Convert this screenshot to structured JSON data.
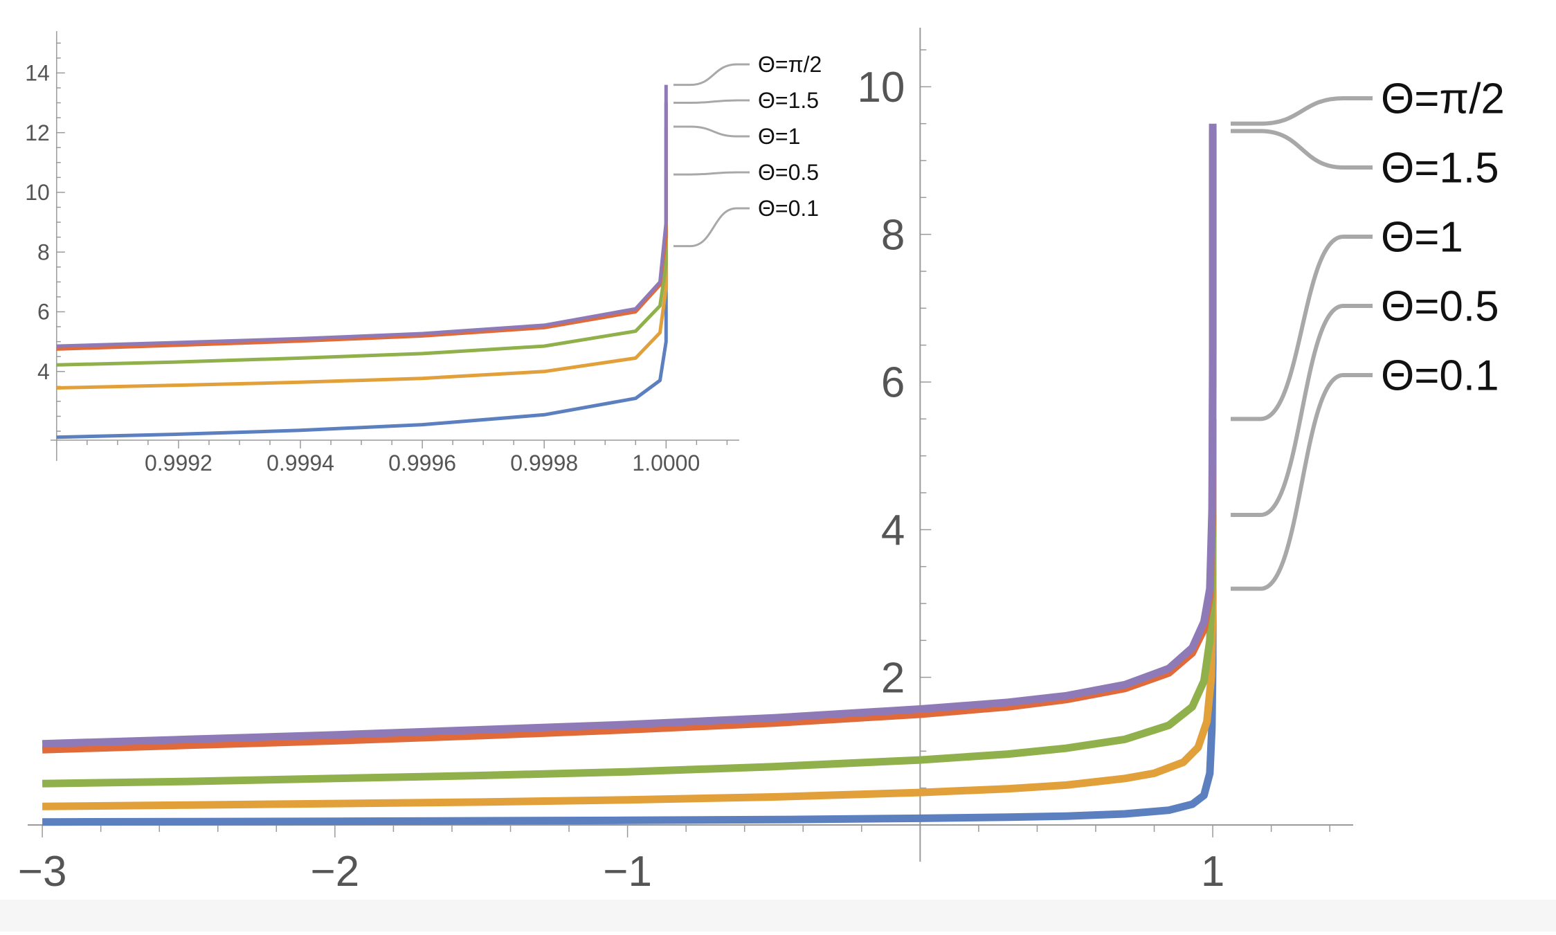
{
  "chart_data": [
    {
      "name": "main",
      "type": "line",
      "title": "",
      "xlabel": "",
      "ylabel": "",
      "xlim": [
        -3.05,
        1.48
      ],
      "ylim": [
        0,
        10.8
      ],
      "x_ticks": [
        -3,
        -2,
        -1,
        1
      ],
      "x_tick_labels": [
        "−3",
        "−2",
        "−1",
        "1"
      ],
      "y_ticks": [
        2,
        4,
        6,
        8,
        10
      ],
      "y_tick_labels": [
        "2",
        "4",
        "6",
        "8",
        "10"
      ],
      "grid": false,
      "legend_position": "right",
      "series": [
        {
          "name": "Θ=π/2",
          "color": "#8f7ab8",
          "x": [
            -3,
            -2.5,
            -2,
            -1.5,
            -1,
            -0.5,
            0,
            0.3,
            0.5,
            0.7,
            0.85,
            0.93,
            0.97,
            0.99,
            0.998,
            1,
            1
          ],
          "y": [
            1.1,
            1.16,
            1.22,
            1.29,
            1.36,
            1.45,
            1.57,
            1.66,
            1.75,
            1.9,
            2.12,
            2.4,
            2.75,
            3.2,
            4.3,
            6.5,
            9.5
          ]
        },
        {
          "name": "Θ=1.5",
          "color": "#e06a3a",
          "x": [
            -3,
            -2.5,
            -2,
            -1.5,
            -1,
            -0.5,
            0,
            0.3,
            0.5,
            0.7,
            0.85,
            0.93,
            0.97,
            0.99,
            0.998,
            1,
            1
          ],
          "y": [
            1.02,
            1.08,
            1.14,
            1.21,
            1.29,
            1.38,
            1.5,
            1.6,
            1.7,
            1.85,
            2.06,
            2.33,
            2.65,
            3.1,
            4.1,
            6.0,
            9.4
          ]
        },
        {
          "name": "Θ=1",
          "color": "#8fb04a",
          "x": [
            -3,
            -2.5,
            -2,
            -1.5,
            -1,
            -0.5,
            0,
            0.3,
            0.5,
            0.7,
            0.85,
            0.93,
            0.97,
            0.99,
            0.998,
            1,
            1
          ],
          "y": [
            0.56,
            0.59,
            0.63,
            0.67,
            0.72,
            0.79,
            0.88,
            0.96,
            1.04,
            1.16,
            1.35,
            1.6,
            1.95,
            2.5,
            3.3,
            4.2,
            5.5
          ]
        },
        {
          "name": "Θ=0.5",
          "color": "#e2a03a",
          "x": [
            -3,
            -2.5,
            -2,
            -1.5,
            -1,
            -0.5,
            0,
            0.3,
            0.5,
            0.7,
            0.8,
            0.9,
            0.95,
            0.98,
            0.995,
            1,
            1
          ],
          "y": [
            0.25,
            0.27,
            0.29,
            0.31,
            0.34,
            0.38,
            0.44,
            0.49,
            0.54,
            0.63,
            0.7,
            0.85,
            1.05,
            1.4,
            2.0,
            3.0,
            4.2
          ]
        },
        {
          "name": "Θ=0.1",
          "color": "#5b7fbf",
          "x": [
            -3,
            -2.5,
            -2,
            -1.5,
            -1,
            -0.5,
            0,
            0.3,
            0.5,
            0.7,
            0.85,
            0.93,
            0.97,
            0.99,
            0.997,
            1,
            1
          ],
          "y": [
            0.04,
            0.045,
            0.05,
            0.056,
            0.063,
            0.072,
            0.09,
            0.105,
            0.12,
            0.15,
            0.2,
            0.28,
            0.4,
            0.7,
            1.3,
            2.2,
            3.2
          ]
        }
      ]
    },
    {
      "name": "inset",
      "type": "line",
      "title": "",
      "xlabel": "",
      "ylabel": "",
      "xlim": [
        0.99899,
        1.00012
      ],
      "ylim": [
        1.7,
        15.4
      ],
      "x_ticks": [
        0.9992,
        0.9994,
        0.9996,
        0.9998,
        1.0
      ],
      "x_tick_labels": [
        "0.9992",
        "0.9994",
        "0.9996",
        "0.9998",
        "1.0000"
      ],
      "y_ticks": [
        4,
        6,
        8,
        10,
        12,
        14
      ],
      "y_tick_labels": [
        "4",
        "6",
        "8",
        "10",
        "12",
        "14"
      ],
      "grid": false,
      "legend_position": "right",
      "series": [
        {
          "name": "Θ=π/2",
          "color": "#8f7ab8",
          "x": [
            0.999,
            0.9992,
            0.9994,
            0.9996,
            0.9998,
            0.99995,
            0.99999,
            1.0,
            1.0
          ],
          "y": [
            4.85,
            4.97,
            5.1,
            5.27,
            5.55,
            6.1,
            7.0,
            9.0,
            13.6
          ]
        },
        {
          "name": "Θ=1.5",
          "color": "#e06a3a",
          "x": [
            0.999,
            0.9992,
            0.9994,
            0.9996,
            0.9998,
            0.99995,
            0.99999,
            1.0,
            1.0
          ],
          "y": [
            4.75,
            4.88,
            5.02,
            5.19,
            5.47,
            6.0,
            6.9,
            8.5,
            13.0
          ]
        },
        {
          "name": "Θ=1",
          "color": "#8fb04a",
          "x": [
            0.999,
            0.9992,
            0.9994,
            0.9996,
            0.9998,
            0.99995,
            0.99999,
            1.0,
            1.0
          ],
          "y": [
            4.22,
            4.32,
            4.45,
            4.6,
            4.85,
            5.35,
            6.2,
            7.6,
            12.2
          ]
        },
        {
          "name": "Θ=0.5",
          "color": "#e2a03a",
          "x": [
            0.999,
            0.9992,
            0.9994,
            0.9996,
            0.9998,
            0.99995,
            0.99999,
            1.0,
            1.0
          ],
          "y": [
            3.45,
            3.54,
            3.64,
            3.77,
            4.0,
            4.45,
            5.3,
            6.8,
            10.6
          ]
        },
        {
          "name": "Θ=0.1",
          "color": "#5b7fbf",
          "x": [
            0.999,
            0.9992,
            0.9994,
            0.9996,
            0.9998,
            0.99995,
            0.99999,
            1.0,
            1.0
          ],
          "y": [
            1.8,
            1.9,
            2.03,
            2.22,
            2.55,
            3.1,
            3.7,
            5.0,
            8.2
          ]
        }
      ]
    }
  ]
}
